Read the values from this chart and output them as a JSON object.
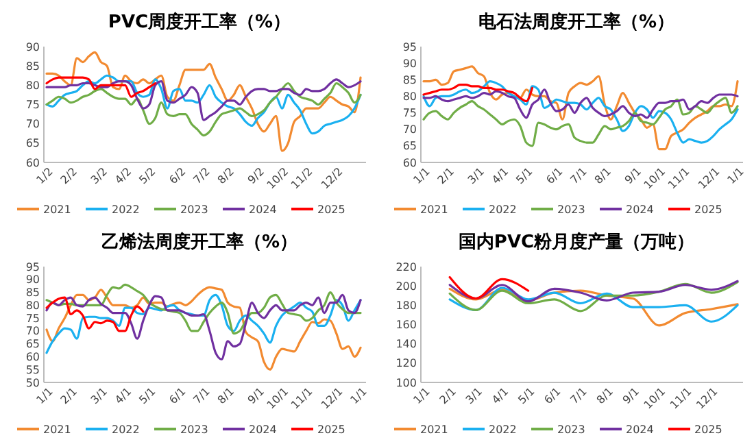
{
  "chart_data": [
    {
      "type": "line",
      "title": "PVC周度开工率（%）",
      "ylim": [
        60,
        90
      ],
      "yticks": [
        60,
        65,
        70,
        75,
        80,
        85,
        90
      ],
      "legend": "bottom",
      "grid": false,
      "categories": [
        "1/2",
        null,
        null,
        null,
        "2/2",
        null,
        null,
        null,
        null,
        "3/2",
        null,
        null,
        null,
        "4/2",
        null,
        null,
        null,
        "5/2",
        null,
        null,
        null,
        null,
        "6/2",
        null,
        null,
        null,
        "7/2",
        null,
        null,
        null,
        "8/2",
        null,
        null,
        null,
        null,
        "9/2",
        null,
        null,
        null,
        "10/2",
        null,
        null,
        null,
        "11/2",
        null,
        null,
        null,
        null,
        "12/2",
        null,
        null,
        null,
        null
      ],
      "series": [
        {
          "name": "2021",
          "color": "#f28a30",
          "values": [
            83,
            83,
            82.5,
            81,
            80,
            87,
            86,
            87.5,
            88.5,
            86,
            85,
            79.5,
            79,
            82.5,
            81,
            80.5,
            81.5,
            80.5,
            81.5,
            82.5,
            77,
            76,
            80,
            84,
            84,
            84,
            84,
            85.5,
            82,
            79,
            76,
            77.5,
            80,
            77,
            74,
            70,
            68,
            70,
            72,
            63,
            65,
            70.5,
            72,
            74,
            74,
            74,
            75.5,
            77,
            76,
            75,
            74.5,
            73,
            82
          ]
        },
        {
          "name": "2022",
          "color": "#1ab0f0",
          "values": [
            75,
            74.5,
            76,
            77.5,
            78,
            78.5,
            80,
            81,
            80.5,
            81.5,
            82.5,
            82,
            81,
            81,
            81,
            78,
            77,
            77.5,
            81.5,
            79,
            74,
            78.5,
            79,
            76,
            76,
            75.5,
            77.5,
            80,
            77,
            75.5,
            74.5,
            74,
            72.5,
            70.5,
            69.5,
            71.5,
            73,
            75.5,
            77,
            74,
            77.5,
            75.5,
            73.5,
            70,
            67.5,
            68,
            69.5,
            70,
            70.5,
            71,
            72,
            74,
            77.5
          ]
        },
        {
          "name": "2023",
          "color": "#70ad47",
          "values": [
            75,
            76,
            77,
            76.5,
            75.5,
            76,
            77,
            77.5,
            78.5,
            79,
            78,
            77,
            76.5,
            76.5,
            75,
            76.5,
            73.5,
            70,
            71.5,
            75.5,
            72.5,
            72,
            72.5,
            72.5,
            70,
            68.5,
            67,
            68,
            70.5,
            72.5,
            73,
            73.5,
            74,
            73,
            72,
            72.5,
            73.5,
            75.5,
            77,
            79,
            80.5,
            78.5,
            77,
            76.5,
            76,
            75,
            76.5,
            78,
            80.5,
            79.5,
            78,
            75.5,
            77.5
          ]
        },
        {
          "name": "2024",
          "color": "#7030a0",
          "values": [
            79.5,
            79.5,
            79.5,
            79.5,
            80,
            80,
            80.5,
            80.5,
            80,
            79.5,
            79.5,
            80.5,
            81,
            81,
            80,
            76.5,
            74,
            75,
            80,
            81,
            76,
            75.5,
            76.5,
            77.5,
            79.5,
            78,
            71,
            72,
            73,
            74.5,
            76,
            76,
            75,
            77,
            78.5,
            79,
            79,
            78.5,
            78.5,
            79,
            79,
            78,
            77.5,
            79,
            78.5,
            78.5,
            79,
            80.5,
            81.5,
            80.5,
            79.5,
            80,
            81
          ]
        },
        {
          "name": "2025",
          "color": "#ff0000",
          "values": [
            80.5,
            81.5,
            82,
            82,
            82,
            82,
            82,
            81.5,
            79,
            80,
            80,
            80,
            80,
            80,
            77,
            78,
            78.5,
            79.5,
            80.5,
            null,
            null,
            null,
            null,
            null,
            null,
            null,
            null,
            null,
            null,
            null,
            null,
            null,
            null,
            null,
            null,
            null,
            null,
            null,
            null,
            null,
            null,
            null,
            null,
            null,
            null,
            null,
            null,
            null,
            null,
            null,
            null,
            null,
            null
          ]
        }
      ]
    },
    {
      "type": "line",
      "title": "电石法周度开工率（%）",
      "ylim": [
        60,
        95
      ],
      "yticks": [
        60,
        65,
        70,
        75,
        80,
        85,
        90,
        95
      ],
      "legend": "bottom",
      "grid": false,
      "categories": [
        "1/1",
        null,
        null,
        null,
        "2/1",
        null,
        null,
        null,
        null,
        "3/1",
        null,
        null,
        null,
        "4/1",
        null,
        null,
        null,
        "5/1",
        null,
        null,
        null,
        null,
        "6/1",
        null,
        null,
        null,
        "7/1",
        null,
        null,
        null,
        "8/1",
        null,
        null,
        null,
        null,
        "9/1",
        null,
        null,
        null,
        "10/1",
        null,
        null,
        null,
        "11/1",
        null,
        null,
        null,
        null,
        "12/1",
        null,
        null,
        null,
        "1/1"
      ],
      "series": [
        {
          "name": "2021",
          "color": "#f28a30",
          "values": [
            84.5,
            84.5,
            85,
            83.5,
            84,
            87.5,
            88,
            88.5,
            89,
            87,
            86,
            81,
            79,
            80.5,
            81,
            80,
            79.5,
            82,
            80.5,
            80,
            80,
            78.5,
            78,
            73,
            81,
            83,
            84,
            83.5,
            84.5,
            86,
            77.5,
            73,
            77,
            81,
            78,
            75,
            73,
            70.5,
            71.5,
            64,
            64,
            68,
            69,
            70,
            72,
            73.5,
            74.5,
            75.5,
            77,
            77,
            77.5,
            77,
            84.5
          ]
        },
        {
          "name": "2022",
          "color": "#1ab0f0",
          "values": [
            80,
            77,
            79.5,
            80,
            80,
            80.5,
            81.5,
            82,
            81,
            81.5,
            83,
            84.5,
            84,
            83,
            81,
            80,
            79,
            77.5,
            83,
            82,
            76.5,
            77.5,
            79,
            78.5,
            78,
            78,
            77.5,
            76,
            78,
            79.5,
            77,
            76,
            73,
            69.5,
            71,
            75,
            77,
            76,
            73.5,
            75.5,
            75,
            73,
            69,
            66,
            67,
            66.5,
            66,
            66.5,
            68,
            70,
            71.5,
            73,
            76
          ]
        },
        {
          "name": "2023",
          "color": "#70ad47",
          "values": [
            73,
            75,
            75.5,
            74,
            73,
            75,
            76.5,
            77.5,
            78.5,
            77,
            76,
            74.5,
            73,
            71.5,
            72.5,
            73,
            71,
            66,
            65,
            72,
            71.5,
            70.5,
            70,
            71,
            71.5,
            67.5,
            66.5,
            66,
            66,
            68.5,
            71,
            70,
            70.5,
            71,
            72.5,
            75,
            72.5,
            72,
            71.5,
            73.5,
            76,
            77,
            79,
            74.5,
            75,
            77,
            76,
            75,
            77,
            78.5,
            79.5,
            75,
            77
          ]
        },
        {
          "name": "2024",
          "color": "#7030a0",
          "values": [
            79.5,
            79.5,
            80,
            79,
            78.5,
            79,
            79.5,
            80,
            79.5,
            80,
            81,
            80.5,
            81.5,
            81,
            80,
            79.5,
            76,
            73.5,
            77.5,
            79,
            82,
            78,
            75.5,
            76,
            77.5,
            75,
            78,
            79.5,
            76.5,
            75,
            74,
            74.5,
            75.5,
            77,
            75,
            74,
            74.5,
            73.5,
            76,
            78,
            78,
            78.5,
            78.5,
            79,
            76,
            77,
            78.5,
            78,
            79.5,
            80.5,
            80.5,
            80.5,
            80
          ]
        },
        {
          "name": "2025",
          "color": "#ff0000",
          "values": [
            80.5,
            81,
            81.5,
            82,
            82,
            82.5,
            83.5,
            83.5,
            83,
            83,
            82.5,
            82.5,
            82,
            82,
            81.5,
            81,
            79.5,
            78.5,
            82.5,
            null,
            null,
            null,
            null,
            null,
            null,
            null,
            null,
            null,
            null,
            null,
            null,
            null,
            null,
            null,
            null,
            null,
            null,
            null,
            null,
            null,
            null,
            null,
            null,
            null,
            null,
            null,
            null,
            null,
            null,
            null,
            null,
            null,
            null
          ]
        }
      ]
    },
    {
      "type": "line",
      "title": "乙烯法周度开工率（%）",
      "ylim": [
        50,
        95
      ],
      "yticks": [
        50,
        55,
        60,
        65,
        70,
        75,
        80,
        85,
        90,
        95
      ],
      "legend": "bottom",
      "grid": false,
      "categories": [
        "1/1",
        null,
        null,
        null,
        "2/1",
        null,
        null,
        null,
        null,
        "3/1",
        null,
        null,
        null,
        "4/1",
        null,
        null,
        null,
        "5/1",
        null,
        null,
        null,
        null,
        "6/1",
        null,
        null,
        null,
        "7/1",
        null,
        null,
        null,
        "8/1",
        null,
        null,
        null,
        null,
        "9/1",
        null,
        null,
        null,
        "10/1",
        null,
        null,
        null,
        "11/1",
        null,
        null,
        null,
        null,
        "12/1",
        null,
        null,
        null,
        "1/1"
      ],
      "series": [
        {
          "name": "2021",
          "color": "#f28a30",
          "values": [
            70.5,
            66,
            71,
            75,
            80,
            84,
            84,
            82,
            83,
            86,
            83,
            80,
            80,
            80,
            79,
            80,
            83,
            80.5,
            81,
            81,
            79.5,
            80.5,
            81,
            80,
            81.5,
            84,
            86,
            87,
            86.5,
            86,
            81,
            79.5,
            79,
            69.5,
            67.5,
            66,
            58,
            55,
            60,
            63,
            62.5,
            62,
            66,
            70,
            73.5,
            73,
            74.5,
            74,
            69,
            63,
            64,
            60,
            63.5
          ]
        },
        {
          "name": "2022",
          "color": "#1ab0f0",
          "values": [
            61.5,
            66,
            69,
            71,
            70.5,
            67,
            75,
            75.5,
            75.5,
            75,
            75,
            74,
            72,
            79,
            79,
            77,
            76.5,
            79,
            78.5,
            78,
            79.5,
            80,
            78,
            77,
            76.5,
            76,
            76,
            82,
            84,
            80,
            72,
            70,
            74,
            76,
            74,
            72,
            69,
            65.5,
            72,
            76,
            78,
            79.5,
            81,
            79,
            77.5,
            72,
            72,
            76,
            82,
            80,
            74,
            78,
            82
          ]
        },
        {
          "name": "2023",
          "color": "#70ad47",
          "values": [
            82,
            81,
            80,
            80.5,
            80.5,
            80,
            80,
            80,
            80,
            80,
            84,
            87,
            86.5,
            88,
            87,
            85.5,
            84,
            81,
            79.5,
            78.5,
            78,
            77.5,
            77,
            74,
            70,
            70,
            73.5,
            77,
            79.5,
            81,
            77,
            69,
            70,
            74,
            77,
            77,
            79,
            83,
            84,
            80.5,
            77,
            76.5,
            76,
            74,
            75,
            78,
            80,
            85,
            81,
            78.5,
            77,
            77,
            77
          ]
        },
        {
          "name": "2024",
          "color": "#7030a0",
          "values": [
            78,
            81,
            80,
            82,
            83,
            80,
            79.5,
            82,
            83,
            80.5,
            79,
            77,
            77,
            77,
            73,
            67,
            74,
            80,
            83.5,
            83,
            78,
            78,
            78,
            77,
            76,
            76,
            76.5,
            70,
            61.5,
            59,
            66,
            64,
            65,
            73,
            81,
            77,
            75,
            78,
            80,
            78,
            78,
            78,
            80,
            81,
            80,
            83,
            77,
            81,
            81,
            84,
            78,
            77,
            82
          ]
        },
        {
          "name": "2025",
          "color": "#ff0000",
          "values": [
            79,
            81,
            82.5,
            83,
            76.5,
            78,
            76,
            71,
            73.5,
            73,
            74,
            73.5,
            70,
            70,
            76,
            79.5,
            77.5,
            null,
            null,
            null,
            null,
            null,
            null,
            null,
            null,
            null,
            null,
            null,
            null,
            null,
            null,
            null,
            null,
            null,
            null,
            null,
            null,
            null,
            null,
            null,
            null,
            null,
            null,
            null,
            null,
            null,
            null,
            null,
            null,
            null,
            null,
            null,
            null
          ]
        }
      ]
    },
    {
      "type": "line",
      "title": "国内PVC粉月度产量（万吨）",
      "ylim": [
        100,
        220
      ],
      "yticks": [
        100,
        120,
        140,
        160,
        180,
        200,
        220
      ],
      "legend": "bottom",
      "grid": false,
      "categories": [
        "1/1",
        "2/1",
        "3/1",
        "4/1",
        "5/1",
        "6/1",
        "7/1",
        "8/1",
        "9/1",
        "10/1",
        "11/1",
        "12/1",
        null
      ],
      "series": [
        {
          "name": "2021",
          "color": "#f28a30",
          "values": [
            null,
            197,
            186,
            196,
            185,
            193,
            195,
            190,
            187,
            159,
            172,
            176,
            181
          ]
        },
        {
          "name": "2022",
          "color": "#1ab0f0",
          "values": [
            null,
            186,
            175,
            198,
            186,
            193,
            182,
            192,
            178,
            178,
            180,
            163,
            180
          ]
        },
        {
          "name": "2023",
          "color": "#70ad47",
          "values": [
            null,
            192,
            175,
            195,
            182,
            186,
            174,
            190,
            190,
            194,
            202,
            193,
            204
          ]
        },
        {
          "name": "2024",
          "color": "#7030a0",
          "values": [
            null,
            201,
            187,
            201,
            184,
            197,
            193,
            185,
            193,
            194,
            201,
            196,
            205
          ]
        },
        {
          "name": "2025",
          "color": "#ff0000",
          "values": [
            null,
            209,
            187,
            207,
            195,
            null,
            null,
            null,
            null,
            null,
            null,
            null,
            null
          ]
        }
      ]
    }
  ]
}
